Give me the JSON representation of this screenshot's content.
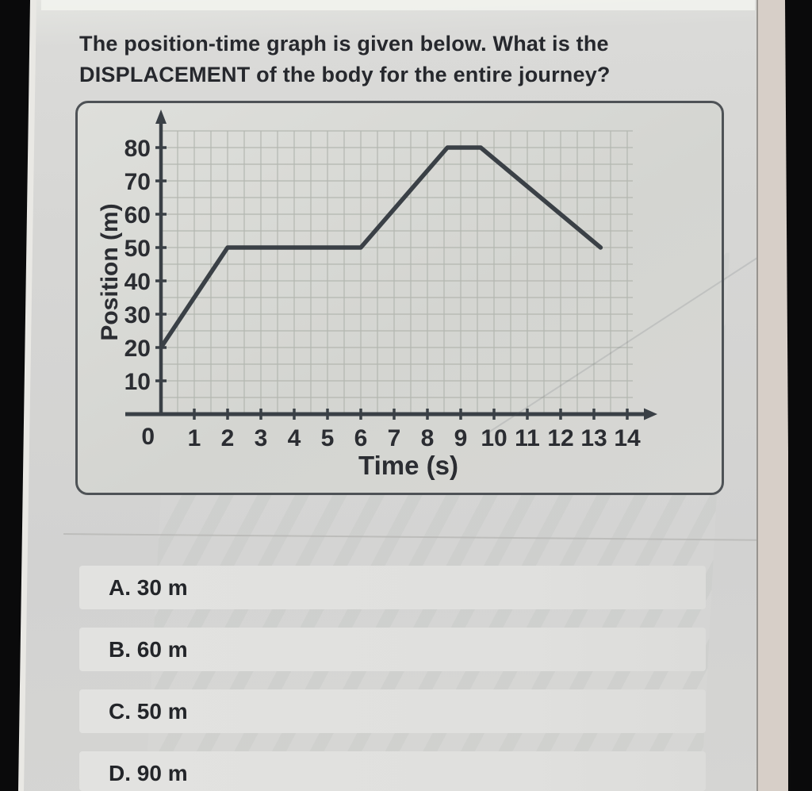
{
  "question": {
    "line1": "The position-time graph is given below. What is the",
    "line2": "DISPLACEMENT of the body for the entire journey?"
  },
  "options": [
    {
      "label": "A. 30 m"
    },
    {
      "label": "B. 60 m"
    },
    {
      "label": "C. 50 m"
    },
    {
      "label": "D. 90 m"
    }
  ],
  "chart_data": {
    "type": "line",
    "title": "",
    "xlabel": "Time (s)",
    "ylabel": "Position (m)",
    "origin_label": "0",
    "x_ticks": [
      1,
      2,
      3,
      4,
      5,
      6,
      7,
      8,
      9,
      10,
      11,
      12,
      13,
      14
    ],
    "y_ticks": [
      10,
      20,
      30,
      40,
      50,
      60,
      70,
      80
    ],
    "xlim": [
      0,
      15
    ],
    "ylim": [
      0,
      88
    ],
    "grid": true,
    "grid_step_x": 0.5,
    "grid_step_y": 5,
    "legend": "none",
    "series": [
      {
        "name": "position",
        "points": [
          [
            0,
            20
          ],
          [
            2,
            50
          ],
          [
            6,
            50
          ],
          [
            8.6,
            80
          ],
          [
            9.6,
            80
          ],
          [
            13.2,
            50
          ]
        ]
      }
    ],
    "colors": {
      "curve": "#3a4046",
      "axis": "#3a4046",
      "grid": "#b3b7b0",
      "label": "#2b2d32"
    }
  }
}
